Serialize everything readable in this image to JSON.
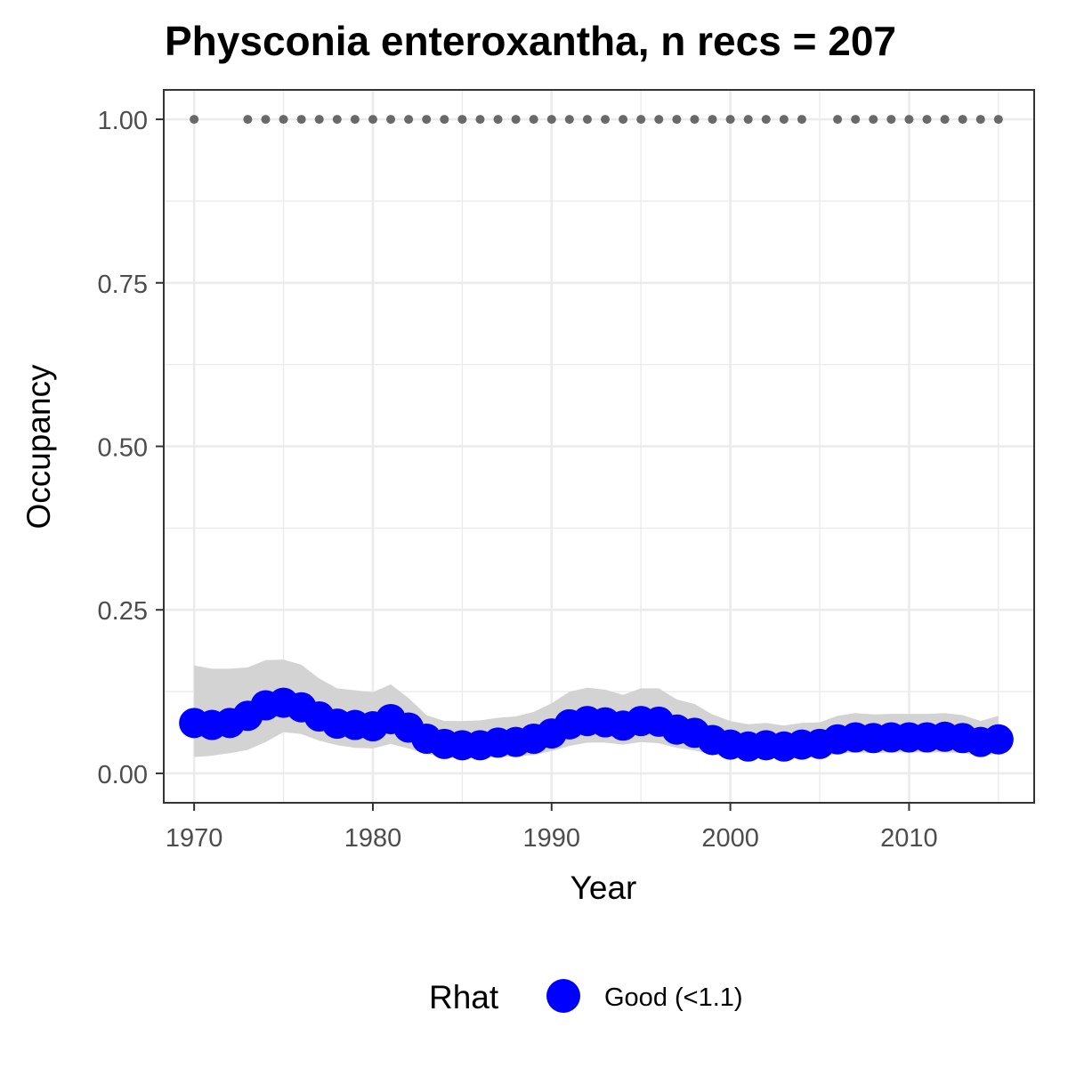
{
  "chart_data": {
    "type": "line",
    "title": "Physconia enteroxantha, n recs = 207",
    "xlabel": "Year",
    "ylabel": "Occupancy",
    "xlim": [
      1968.3,
      2017.0
    ],
    "ylim": [
      -0.045,
      1.045
    ],
    "x_ticks": [
      1970,
      1980,
      1990,
      2000,
      2010
    ],
    "x_tick_labels": [
      "1970",
      "1980",
      "1990",
      "2000",
      "2010"
    ],
    "x_minor_ticks": [
      1975,
      1985,
      1995,
      2005,
      2015
    ],
    "y_ticks": [
      0.0,
      0.25,
      0.5,
      0.75,
      1.0
    ],
    "y_tick_labels": [
      "0.00",
      "0.25",
      "0.50",
      "0.75",
      "1.00"
    ],
    "y_minor_ticks": [
      0.125,
      0.375,
      0.625,
      0.875
    ],
    "grid": true,
    "legend": {
      "title": "Rhat",
      "placement": "bottom",
      "entries": [
        {
          "label": "Good (<1.1)",
          "color": "#0000ff"
        }
      ]
    },
    "colors": {
      "series": "#0000ff",
      "ribbon": "#d3d3d3",
      "record_points": "#696969",
      "grid": "#ebebeb",
      "border": "#333333"
    },
    "series": {
      "x": [
        1970,
        1971,
        1972,
        1973,
        1974,
        1975,
        1976,
        1977,
        1978,
        1979,
        1980,
        1981,
        1982,
        1983,
        1984,
        1985,
        1986,
        1987,
        1988,
        1989,
        1990,
        1991,
        1992,
        1993,
        1994,
        1995,
        1996,
        1997,
        1998,
        1999,
        2000,
        2001,
        2002,
        2003,
        2004,
        2005,
        2006,
        2007,
        2008,
        2009,
        2010,
        2011,
        2012,
        2013,
        2014,
        2015
      ],
      "y": [
        0.077,
        0.074,
        0.077,
        0.088,
        0.104,
        0.108,
        0.101,
        0.087,
        0.076,
        0.074,
        0.072,
        0.083,
        0.07,
        0.053,
        0.045,
        0.043,
        0.043,
        0.047,
        0.048,
        0.053,
        0.061,
        0.075,
        0.08,
        0.078,
        0.073,
        0.08,
        0.079,
        0.067,
        0.062,
        0.051,
        0.044,
        0.041,
        0.043,
        0.041,
        0.044,
        0.045,
        0.052,
        0.055,
        0.054,
        0.055,
        0.055,
        0.055,
        0.056,
        0.054,
        0.048,
        0.052
      ],
      "lower": [
        0.025,
        0.027,
        0.031,
        0.036,
        0.048,
        0.063,
        0.06,
        0.05,
        0.043,
        0.039,
        0.038,
        0.045,
        0.038,
        0.03,
        0.025,
        0.023,
        0.023,
        0.025,
        0.026,
        0.028,
        0.034,
        0.042,
        0.047,
        0.047,
        0.044,
        0.048,
        0.046,
        0.039,
        0.035,
        0.029,
        0.025,
        0.023,
        0.024,
        0.022,
        0.024,
        0.025,
        0.03,
        0.032,
        0.031,
        0.032,
        0.032,
        0.032,
        0.032,
        0.031,
        0.027,
        0.03
      ],
      "upper": [
        0.165,
        0.16,
        0.16,
        0.162,
        0.173,
        0.174,
        0.166,
        0.145,
        0.13,
        0.127,
        0.124,
        0.136,
        0.115,
        0.089,
        0.08,
        0.08,
        0.081,
        0.085,
        0.087,
        0.094,
        0.107,
        0.125,
        0.131,
        0.128,
        0.12,
        0.13,
        0.13,
        0.113,
        0.106,
        0.09,
        0.08,
        0.075,
        0.077,
        0.073,
        0.077,
        0.078,
        0.088,
        0.092,
        0.09,
        0.091,
        0.091,
        0.091,
        0.092,
        0.089,
        0.08,
        0.088
      ]
    },
    "record_years": [
      1970,
      1973,
      1974,
      1975,
      1976,
      1977,
      1978,
      1979,
      1980,
      1981,
      1982,
      1983,
      1984,
      1985,
      1986,
      1987,
      1988,
      1989,
      1990,
      1991,
      1992,
      1993,
      1994,
      1995,
      1996,
      1997,
      1998,
      1999,
      2000,
      2001,
      2002,
      2003,
      2004,
      2006,
      2007,
      2008,
      2009,
      2010,
      2011,
      2012,
      2013,
      2014,
      2015
    ],
    "record_value": 1.0
  }
}
